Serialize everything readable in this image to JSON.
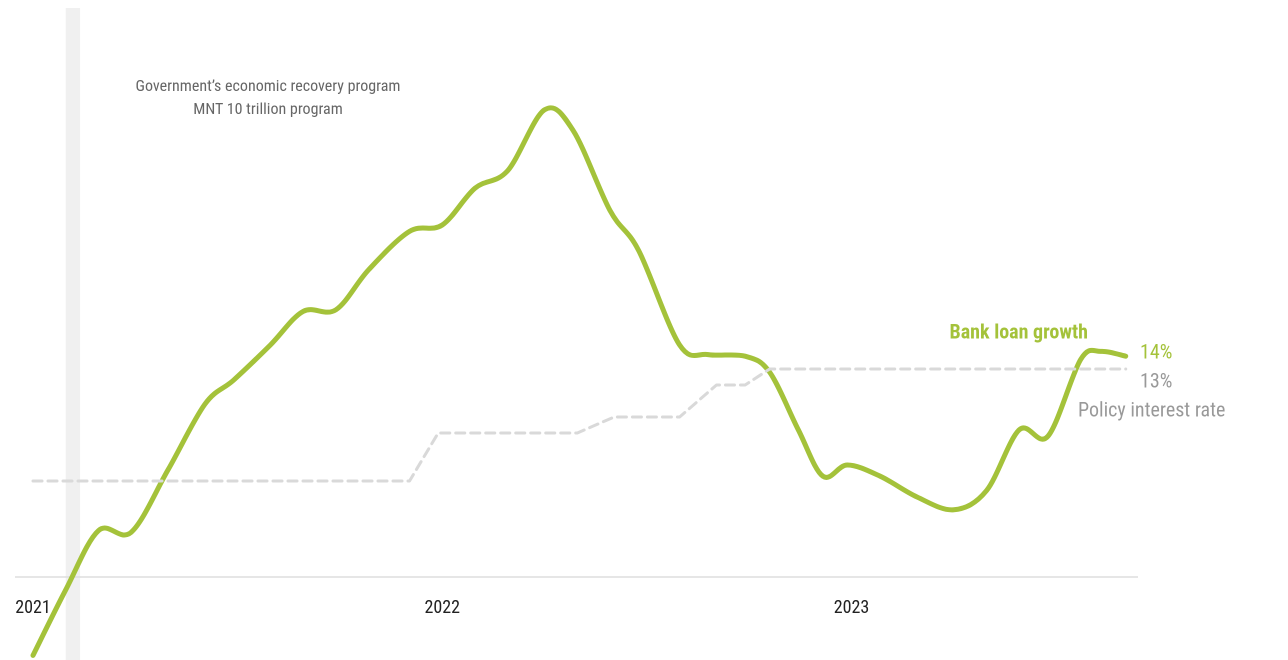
{
  "chart_data": {
    "type": "line",
    "annotation": {
      "lines": [
        "Government’s economic recovery program",
        "MNT 10 trillion program"
      ],
      "x": [
        2021.08,
        2021.115
      ]
    },
    "xlim": [
      2020.956,
      2023.7
    ],
    "xticks": [
      2021,
      2022,
      2023
    ],
    "ylim": [
      -5,
      30
    ],
    "series": [
      {
        "name": "Bank loan growth",
        "color": "#a4c23a",
        "style": "solid",
        "x": [
          2021.0,
          2021.08,
          2021.16,
          2021.24,
          2021.33,
          2021.42,
          2021.49,
          2021.58,
          2021.66,
          2021.74,
          2021.82,
          2021.92,
          2022.0,
          2022.08,
          2022.16,
          2022.25,
          2022.32,
          2022.41,
          2022.48,
          2022.58,
          2022.65,
          2022.74,
          2022.8,
          2022.87,
          2022.93,
          2022.99,
          2023.07,
          2023.16,
          2023.25,
          2023.33,
          2023.41,
          2023.48,
          2023.56,
          2023.61,
          2023.67
        ],
        "values": [
          -4.9,
          -0.8,
          2.9,
          2.8,
          6.7,
          10.8,
          12.3,
          14.5,
          16.6,
          16.7,
          19.2,
          21.6,
          22.0,
          24.3,
          25.4,
          29.2,
          27.9,
          22.9,
          20.4,
          14.5,
          13.9,
          13.8,
          12.8,
          9.2,
          6.3,
          7.0,
          6.3,
          5.0,
          4.2,
          5.4,
          9.2,
          8.8,
          13.6,
          14.1,
          13.8
        ],
        "value_labels": [
          null,
          null,
          null,
          null,
          null,
          null,
          null,
          null,
          null,
          null,
          null,
          null,
          null,
          null,
          null,
          null,
          null,
          null,
          null,
          null,
          null,
          null,
          null,
          null,
          null,
          null,
          null,
          null,
          null,
          null,
          null,
          null,
          null,
          null,
          "14%"
        ]
      },
      {
        "name": "Policy interest rate",
        "color": "#d9d9d9",
        "style": "dashed",
        "x": [
          2021.0,
          2021.92,
          2021.99,
          2022.33,
          2022.42,
          2022.58,
          2022.67,
          2022.74,
          2022.8,
          2023.67
        ],
        "values": [
          6,
          6,
          9,
          9,
          10,
          10,
          12,
          12,
          13,
          13
        ],
        "value_labels": [
          null,
          null,
          null,
          null,
          null,
          null,
          null,
          null,
          null,
          "13%"
        ]
      }
    ]
  }
}
